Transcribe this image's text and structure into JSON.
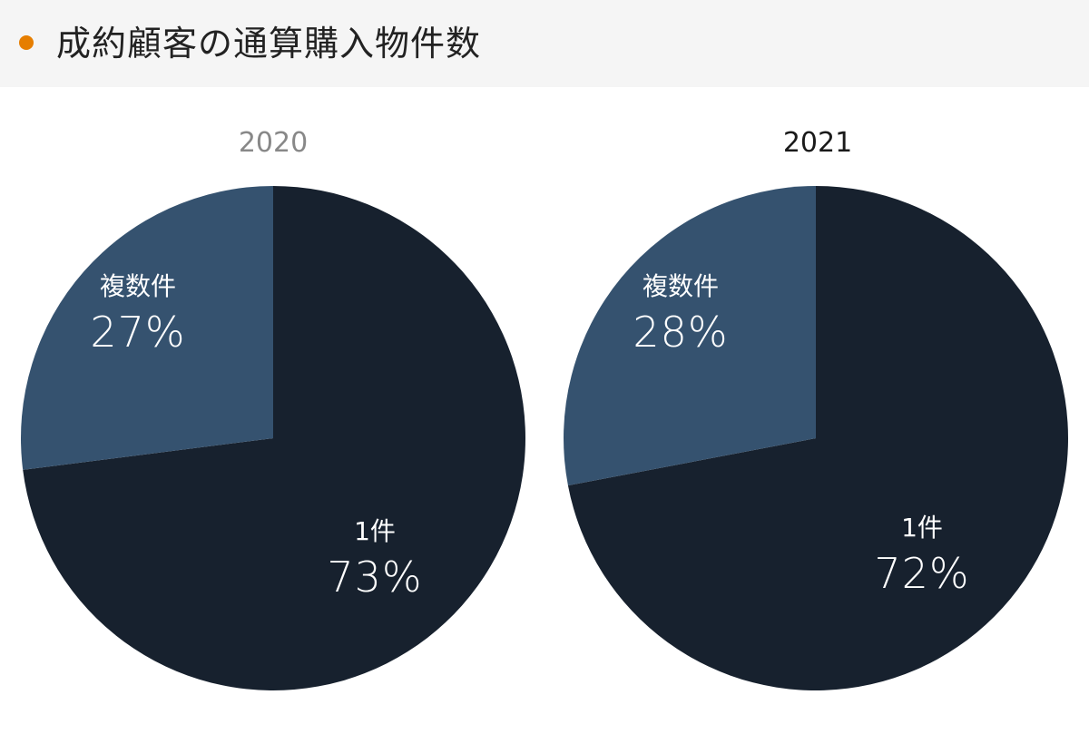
{
  "header": {
    "title": "成約顧客の通算購入物件数",
    "bullet_color": "#e67e00"
  },
  "colors": {
    "single": "#17212e",
    "multiple": "#35526f",
    "year_2020_label": "#888888",
    "year_2021_label": "#1a1a1a"
  },
  "charts": [
    {
      "year": "2020",
      "slices": [
        {
          "label": "1件",
          "pct_text": "73%"
        },
        {
          "label": "複数件",
          "pct_text": "27%"
        }
      ]
    },
    {
      "year": "2021",
      "slices": [
        {
          "label": "1件",
          "pct_text": "72%"
        },
        {
          "label": "複数件",
          "pct_text": "28%"
        }
      ]
    }
  ],
  "chart_data": [
    {
      "type": "pie",
      "title": "2020",
      "categories": [
        "1件",
        "複数件"
      ],
      "values": [
        73,
        27
      ],
      "unit": "%",
      "start_angle": "12 o'clock, clockwise",
      "legend": "inline labels"
    },
    {
      "type": "pie",
      "title": "2021",
      "categories": [
        "1件",
        "複数件"
      ],
      "values": [
        72,
        28
      ],
      "unit": "%",
      "start_angle": "12 o'clock, clockwise",
      "legend": "inline labels"
    }
  ]
}
